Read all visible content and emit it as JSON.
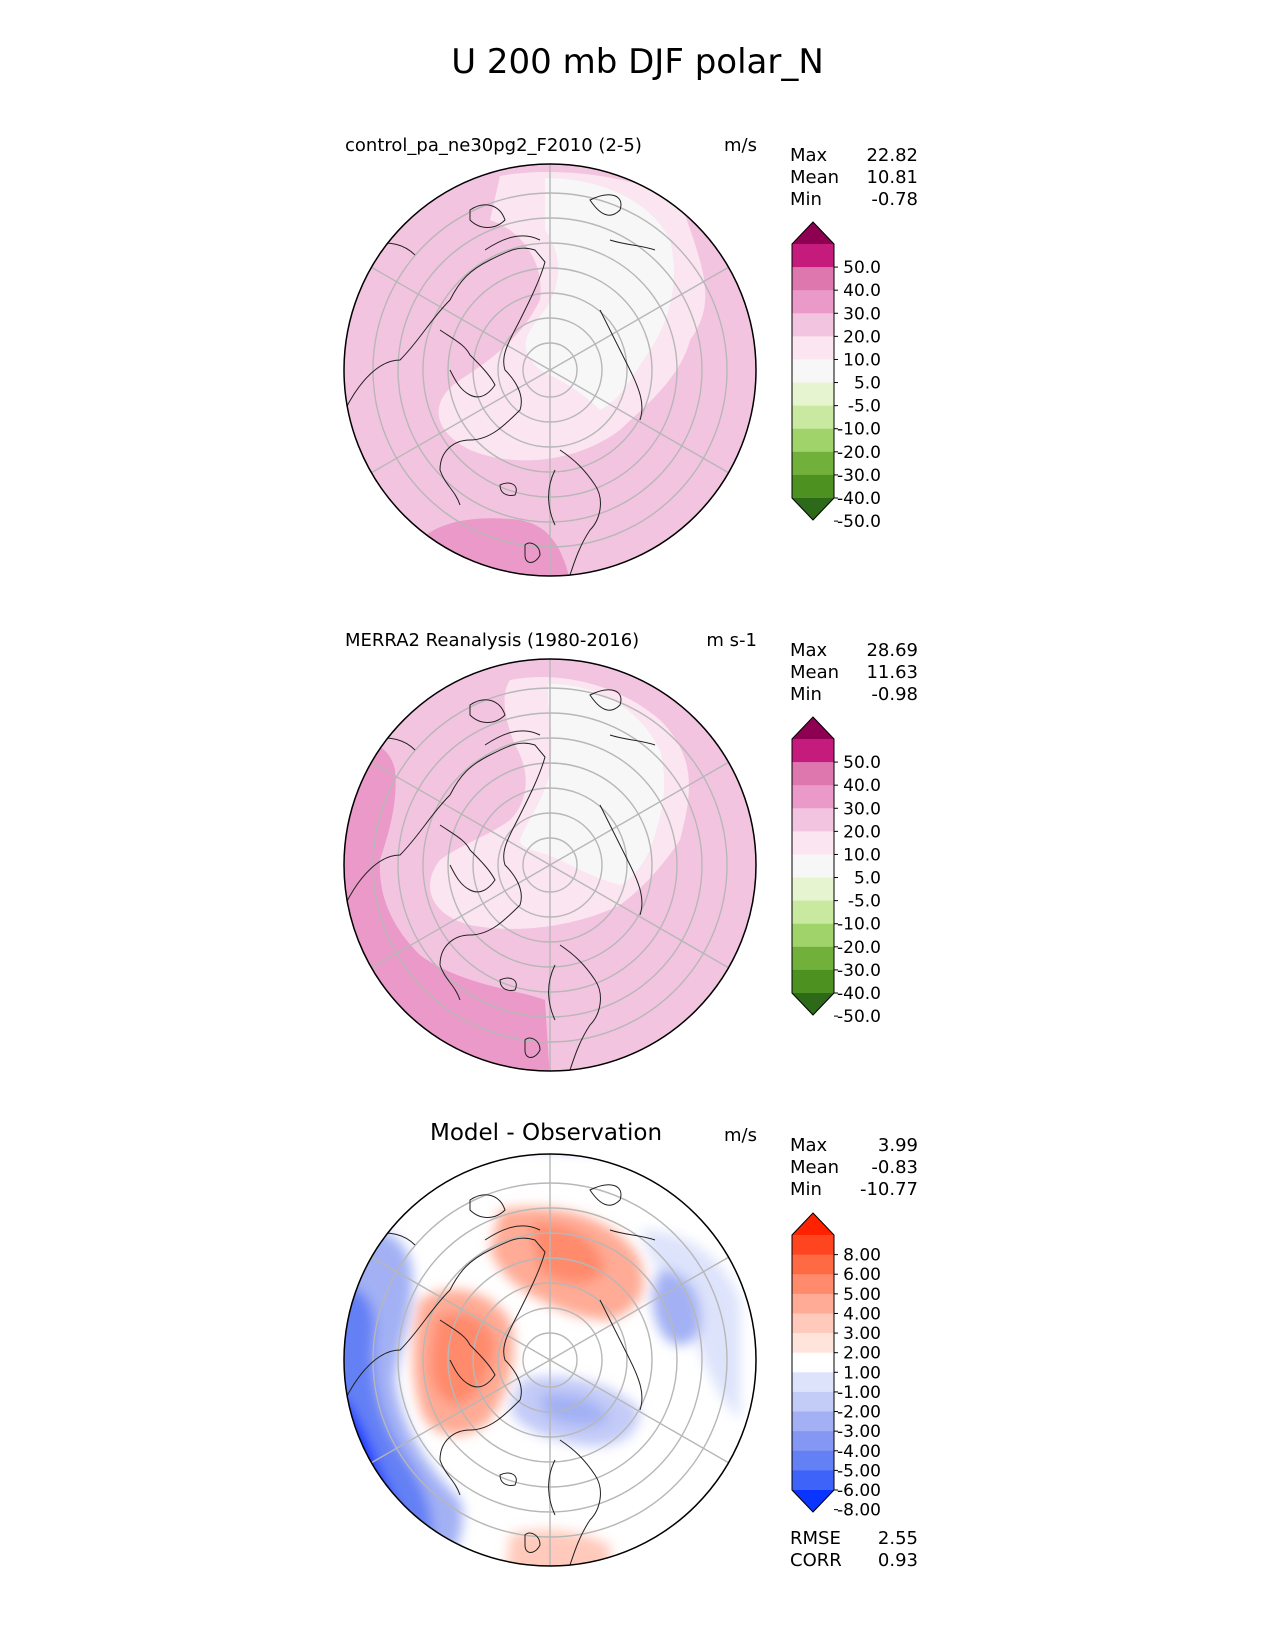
{
  "title": "U 200 mb DJF polar_N",
  "panels": [
    {
      "id": "test",
      "title": "control_pa_ne30pg2_F2010 (2-5)",
      "units": "m/s",
      "stats": [
        {
          "label": "Max",
          "value": "22.82"
        },
        {
          "label": "Mean",
          "value": "10.81"
        },
        {
          "label": "Min",
          "value": "-0.78"
        }
      ],
      "colorbar": {
        "labels": [
          "50.0",
          "40.0",
          "30.0",
          "20.0",
          "10.0",
          "5.0",
          "-5.0",
          "-10.0",
          "-20.0",
          "-30.0",
          "-40.0",
          "-50.0"
        ],
        "colors": [
          "#8e0152",
          "#c51b7d",
          "#de77ae",
          "#ea99c8",
          "#f3c4e0",
          "#fbe5f0",
          "#f7f7f7",
          "#e6f5d0",
          "#c9e9a0",
          "#a0d46a",
          "#72b03c",
          "#4d9221",
          "#2c6a1a"
        ]
      }
    },
    {
      "id": "reference",
      "title": "MERRA2 Reanalysis (1980-2016)",
      "units": "m s-1",
      "stats": [
        {
          "label": "Max",
          "value": "28.69"
        },
        {
          "label": "Mean",
          "value": "11.63"
        },
        {
          "label": "Min",
          "value": "-0.98"
        }
      ],
      "colorbar": {
        "labels": [
          "50.0",
          "40.0",
          "30.0",
          "20.0",
          "10.0",
          "5.0",
          "-5.0",
          "-10.0",
          "-20.0",
          "-30.0",
          "-40.0",
          "-50.0"
        ],
        "colors": [
          "#8e0152",
          "#c51b7d",
          "#de77ae",
          "#ea99c8",
          "#f3c4e0",
          "#fbe5f0",
          "#f7f7f7",
          "#e6f5d0",
          "#c9e9a0",
          "#a0d46a",
          "#72b03c",
          "#4d9221",
          "#2c6a1a"
        ]
      }
    },
    {
      "id": "difference",
      "title": "Model - Observation",
      "units": "m/s",
      "stats": [
        {
          "label": "Max",
          "value": "3.99"
        },
        {
          "label": "Mean",
          "value": "-0.83"
        },
        {
          "label": "Min",
          "value": "-10.77"
        }
      ],
      "colorbar": {
        "labels": [
          "8.00",
          "6.00",
          "5.00",
          "4.00",
          "3.00",
          "2.00",
          "1.00",
          "-1.00",
          "-2.00",
          "-3.00",
          "-4.00",
          "-5.00",
          "-6.00",
          "-8.00"
        ],
        "colors": [
          "#ff2200",
          "#ff4520",
          "#ff6a45",
          "#ff8a6c",
          "#ffab95",
          "#ffcabb",
          "#ffe4dc",
          "#ffffff",
          "#dde3fb",
          "#c3cbf7",
          "#a3b1f4",
          "#8498f3",
          "#6480f5",
          "#3e63f8",
          "#0a34ff"
        ]
      },
      "metrics": [
        {
          "label": "RMSE",
          "value": "2.55"
        },
        {
          "label": "CORR",
          "value": "0.93"
        }
      ]
    }
  ]
}
